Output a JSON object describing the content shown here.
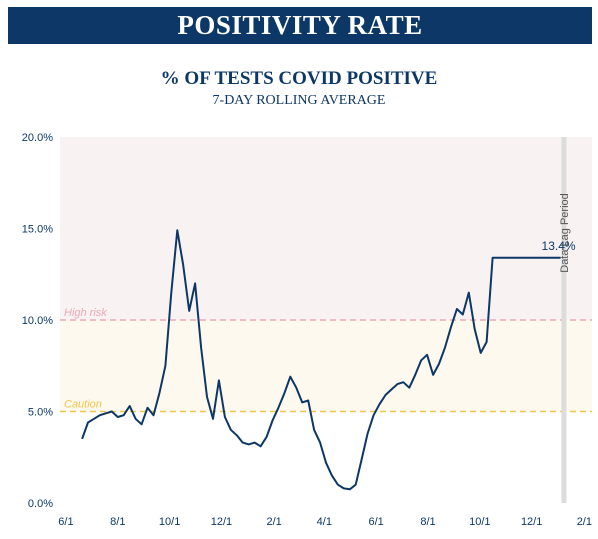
{
  "banner": {
    "title": "POSITIVITY RATE"
  },
  "chart_data": {
    "type": "line",
    "title": "% OF TESTS COVID POSITIVE",
    "subtitle": "7-DAY ROLLING AVERAGE",
    "xlabel": "",
    "ylabel": "",
    "ylim": [
      0,
      20
    ],
    "y_ticks": [
      0,
      5,
      10,
      15,
      20
    ],
    "y_tick_labels": [
      "0.0%",
      "5.0%",
      "10.0%",
      "15.0%",
      "20.0%"
    ],
    "x_ticks": [
      "2020-06-01",
      "2020-08-01",
      "2020-10-01",
      "2020-12-01",
      "2021-02-01",
      "2021-04-01",
      "2021-06-01",
      "2021-08-01",
      "2021-10-01",
      "2021-12-01",
      "2022-02-01"
    ],
    "x_tick_labels": [
      "6/1",
      "8/1",
      "10/1",
      "12/1",
      "2/1",
      "4/1",
      "6/1",
      "8/1",
      "10/1",
      "12/1",
      "2/1"
    ],
    "xlim": [
      "2020-05-25",
      "2022-02-10"
    ],
    "grid": false,
    "colors": {
      "line": "#0c3766",
      "high_risk_band": "#f9f2f2",
      "caution_band": "#fef9ee",
      "high_risk_line": "#e9a9b4",
      "caution_line": "#eec64d",
      "lag_band": "#dcdcdc"
    },
    "thresholds": [
      {
        "label": "High risk",
        "value": 10
      },
      {
        "label": "Caution",
        "value": 5
      }
    ],
    "lag_period": {
      "label": "Data Lag Period",
      "start": "2022-01-05",
      "end": "2022-01-10"
    },
    "annotation": {
      "text": "13.4%",
      "date": "2022-01-04",
      "value": 13.4
    },
    "series": [
      {
        "x": [
          "2020-06-20",
          "2020-06-27",
          "2020-07-04",
          "2020-07-11",
          "2020-07-18",
          "2020-07-25",
          "2020-08-01",
          "2020-08-08",
          "2020-08-15",
          "2020-08-22",
          "2020-08-29",
          "2020-09-05",
          "2020-09-12",
          "2020-09-19",
          "2020-09-26",
          "2020-10-03",
          "2020-10-10",
          "2020-10-17",
          "2020-10-24",
          "2020-10-31",
          "2020-11-07",
          "2020-11-14",
          "2020-11-21",
          "2020-11-28",
          "2020-12-05",
          "2020-12-12",
          "2020-12-19",
          "2020-12-26",
          "2021-01-02",
          "2021-01-09",
          "2021-01-16",
          "2021-01-23",
          "2021-01-30",
          "2021-02-06",
          "2021-02-13",
          "2021-02-20",
          "2021-02-27",
          "2021-03-06",
          "2021-03-13",
          "2021-03-20",
          "2021-03-27",
          "2021-04-03",
          "2021-04-10",
          "2021-04-17",
          "2021-04-24",
          "2021-05-01",
          "2021-05-08",
          "2021-05-15",
          "2021-05-22",
          "2021-05-29",
          "2021-06-05",
          "2021-06-12",
          "2021-06-19",
          "2021-06-26",
          "2021-07-03",
          "2021-07-10",
          "2021-07-17",
          "2021-07-24",
          "2021-07-31",
          "2021-08-07",
          "2021-08-14",
          "2021-08-21",
          "2021-08-28",
          "2021-09-04",
          "2021-09-11",
          "2021-09-18",
          "2021-09-25",
          "2021-10-02",
          "2021-10-09",
          "2021-10-16",
          "2021-10-23",
          "2021-10-30",
          "2021-11-06",
          "2021-11-13",
          "2021-11-20",
          "2021-11-27",
          "2021-12-04",
          "2021-12-11",
          "2021-12-18",
          "2021-12-25",
          "2022-01-01",
          "2022-01-04"
        ],
        "values": [
          3.5,
          4.4,
          4.6,
          4.8,
          4.9,
          5.0,
          4.7,
          4.8,
          5.3,
          4.6,
          4.3,
          5.2,
          4.8,
          6.0,
          7.5,
          11.5,
          14.9,
          13.0,
          10.5,
          12.0,
          8.5,
          5.8,
          4.6,
          6.7,
          4.7,
          4.0,
          3.7,
          3.3,
          3.2,
          3.3,
          3.1,
          3.6,
          4.5,
          5.2,
          6.0,
          6.9,
          6.3,
          5.5,
          5.6,
          4.0,
          3.3,
          2.2,
          1.5,
          1.0,
          0.8,
          0.75,
          1.0,
          2.4,
          3.8,
          4.8,
          5.4,
          5.9,
          6.2,
          6.5,
          6.6,
          6.3,
          7.0,
          7.8,
          8.1,
          7.0,
          7.6,
          8.5,
          9.6,
          10.6,
          10.3,
          11.5,
          9.5,
          8.2,
          8.8,
          13.4,
          13.4,
          13.4,
          13.4,
          13.4,
          13.4,
          13.4,
          13.4,
          13.4,
          13.4,
          13.4,
          13.4,
          13.4
        ]
      }
    ]
  }
}
